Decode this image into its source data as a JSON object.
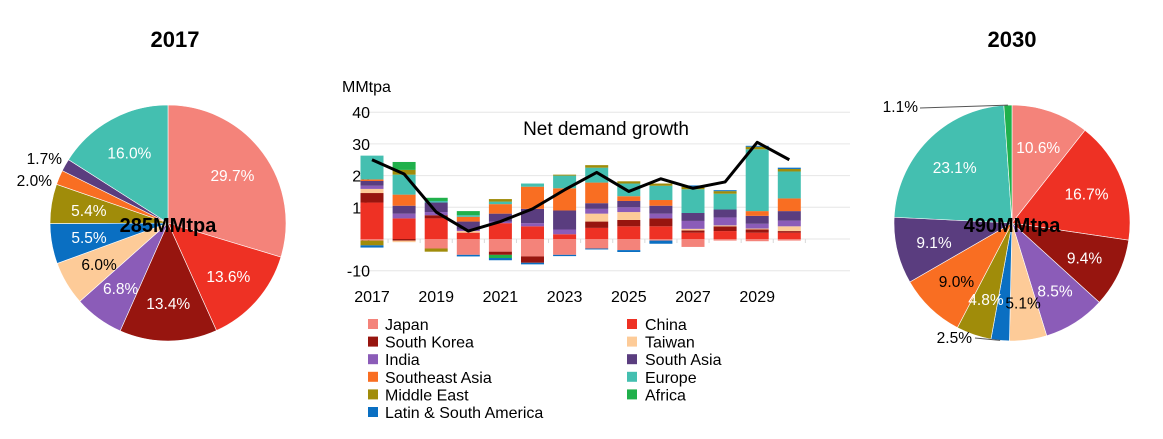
{
  "chart_data": [
    {
      "type": "pie",
      "title": "2017",
      "center_label": "285MMtpa",
      "slices": [
        {
          "name": "Japan",
          "value": 29.7,
          "label": "29.7%",
          "label_color": "#ffffff"
        },
        {
          "name": "China",
          "value": 13.6,
          "label": "13.6%",
          "label_color": "#ffffff"
        },
        {
          "name": "South Korea",
          "value": 13.4,
          "label": "13.4%",
          "label_color": "#ffffff"
        },
        {
          "name": "India",
          "value": 6.8,
          "label": "6.8%",
          "label_color": "#ffffff"
        },
        {
          "name": "Taiwan",
          "value": 6.0,
          "label": "6.0%",
          "label_color": "#000000"
        },
        {
          "name": "Latin & South America",
          "value": 5.5,
          "label": "5.5%",
          "label_color": "#ffffff"
        },
        {
          "name": "Middle East",
          "value": 5.4,
          "label": "5.4%",
          "label_color": "#ffffff"
        },
        {
          "name": "Southeast Asia",
          "value": 2.0,
          "label": "2.0%",
          "label_color": "#000000",
          "outside": true
        },
        {
          "name": "South Asia",
          "value": 1.7,
          "label": "1.7%",
          "label_color": "#000000",
          "outside": true
        },
        {
          "name": "Europe",
          "value": 16.0,
          "label": "16.0%",
          "label_color": "#ffffff"
        }
      ]
    },
    {
      "type": "bar",
      "stacked": true,
      "title": "Net demand growth",
      "ylabel": "MMtpa",
      "xlabel": "",
      "ylim": [
        -10,
        40
      ],
      "yticks": [
        -10,
        0,
        10,
        20,
        30,
        40
      ],
      "grid": true,
      "categories": [
        "2017",
        "2018",
        "2019",
        "2020",
        "2021",
        "2022",
        "2023",
        "2024",
        "2025",
        "2026",
        "2027",
        "2028",
        "2029",
        "2030"
      ],
      "xtick_labels": [
        "2017",
        "2019",
        "2021",
        "2023",
        "2025",
        "2027",
        "2029"
      ],
      "series": [
        {
          "name": "Japan",
          "values": [
            -0.5,
            0,
            -3,
            -5,
            -4,
            -5.5,
            -5,
            -3,
            -3.5,
            -0.5,
            -2.5,
            -0.5,
            -0.7,
            -0.5
          ]
        },
        {
          "name": "China",
          "values": [
            11.5,
            6.5,
            6.5,
            2,
            5,
            4,
            1.5,
            3.5,
            4,
            4,
            2,
            2.5,
            2,
            2
          ]
        },
        {
          "name": "South Korea",
          "values": [
            3,
            -0.5,
            1,
            0,
            -1,
            -2,
            0,
            2,
            2,
            2.5,
            0.7,
            1.5,
            1,
            0.5
          ]
        },
        {
          "name": "Taiwan",
          "values": [
            1.3,
            -0.5,
            0,
            0.5,
            0,
            0,
            0,
            2.5,
            2.5,
            0,
            0.5,
            0.3,
            0.3,
            1.5
          ]
        },
        {
          "name": "India",
          "values": [
            1,
            1.5,
            1,
            0.5,
            0.5,
            1,
            1.5,
            1.5,
            1.5,
            1.5,
            2.5,
            2.5,
            1.5,
            1.8
          ]
        },
        {
          "name": "South Asia",
          "values": [
            1.5,
            2.5,
            3,
            2.5,
            2.5,
            4.5,
            6,
            1.8,
            2,
            2.5,
            2.5,
            2.5,
            2.5,
            3
          ]
        },
        {
          "name": "Southeast Asia",
          "values": [
            0.5,
            3.5,
            0,
            1.5,
            3,
            7,
            7,
            6.5,
            1.5,
            1.8,
            0,
            0,
            1.5,
            4
          ]
        },
        {
          "name": "Europe",
          "values": [
            7.5,
            6.3,
            0.5,
            0.5,
            0.8,
            1,
            4,
            4.7,
            4,
            4.5,
            7.5,
            5,
            19.5,
            8.5
          ]
        },
        {
          "name": "Middle East",
          "values": [
            -1.5,
            1.5,
            -1,
            0,
            0.8,
            0,
            0.3,
            0.8,
            0.7,
            0.7,
            0.8,
            0.8,
            0.8,
            0.8
          ]
        },
        {
          "name": "Africa",
          "values": [
            0,
            2.5,
            1,
            1.3,
            -1,
            0,
            0,
            0,
            0,
            0,
            0,
            0,
            0,
            0
          ]
        },
        {
          "name": "Latin & South America",
          "values": [
            -0.7,
            0,
            0,
            -0.5,
            -0.7,
            -0.5,
            -0.4,
            -0.3,
            -0.6,
            -1,
            0.4,
            0.3,
            0.3,
            0.4
          ]
        }
      ],
      "line": {
        "name": "Net demand growth",
        "values": [
          25,
          20.5,
          8.5,
          2.5,
          5.5,
          9.5,
          15.5,
          21,
          15,
          19,
          16,
          18,
          30.5,
          25
        ]
      },
      "legend": {
        "placement": "bottom",
        "left_column": [
          "Japan",
          "South Korea",
          "India",
          "Southeast Asia",
          "Middle East",
          "Latin & South America"
        ],
        "right_column": [
          "China",
          "Taiwan",
          "South Asia",
          "Europe",
          "Africa"
        ]
      }
    },
    {
      "type": "pie",
      "title": "2030",
      "center_label": "490MMtpa",
      "slices": [
        {
          "name": "Japan",
          "value": 10.6,
          "label": "10.6%",
          "label_color": "#ffffff"
        },
        {
          "name": "China",
          "value": 16.7,
          "label": "16.7%",
          "label_color": "#ffffff"
        },
        {
          "name": "South Korea",
          "value": 9.4,
          "label": "9.4%",
          "label_color": "#ffffff"
        },
        {
          "name": "India",
          "value": 8.5,
          "label": "8.5%",
          "label_color": "#ffffff"
        },
        {
          "name": "Taiwan",
          "value": 5.1,
          "label": "5.1%",
          "label_color": "#000000"
        },
        {
          "name": "Latin & South America",
          "value": 2.5,
          "label": "2.5%",
          "label_color": "#000000",
          "outside": true
        },
        {
          "name": "Middle East",
          "value": 4.8,
          "label": "4.8%",
          "label_color": "#ffffff"
        },
        {
          "name": "Southeast Asia",
          "value": 9.0,
          "label": "9.0%",
          "label_color": "#000000"
        },
        {
          "name": "South Asia",
          "value": 9.1,
          "label": "9.1%",
          "label_color": "#ffffff"
        },
        {
          "name": "Europe",
          "value": 23.1,
          "label": "23.1%",
          "label_color": "#ffffff"
        },
        {
          "name": "Africa",
          "value": 1.1,
          "label": "1.1%",
          "label_color": "#000000",
          "outside": true
        }
      ]
    }
  ],
  "colors": {
    "Japan": "#f4837a",
    "China": "#ee3124",
    "South Korea": "#97150f",
    "Taiwan": "#fdcb98",
    "India": "#8b5cb8",
    "South Asia": "#5a3d7f",
    "Southeast Asia": "#f96e22",
    "Europe": "#44bfb0",
    "Middle East": "#a08c0a",
    "Africa": "#20b04b",
    "Latin & South America": "#0a6fc2",
    "line": "#000000",
    "grid": "#e6e6e6"
  }
}
